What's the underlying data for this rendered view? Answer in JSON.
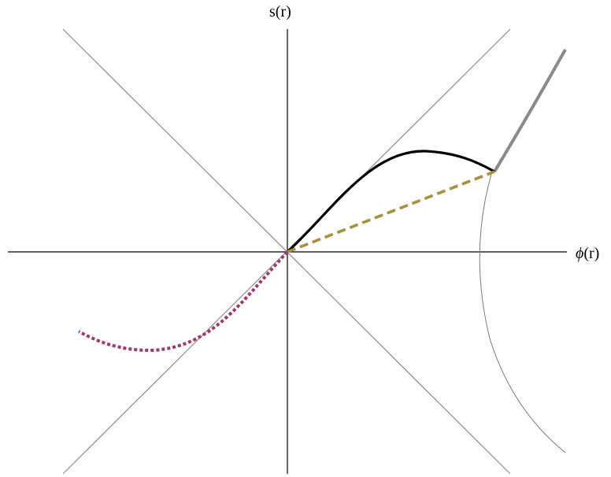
{
  "labels": {
    "y_axis_label": "s(r)",
    "x_axis_phi": "ϕ",
    "x_axis_suffix": "(r)"
  },
  "colors": {
    "axes": "#000000",
    "diagonals": "#8c8c8c",
    "black_curve": "#000000",
    "thin_curve": "#7a7a7a",
    "thick_gray_curve": "#8a8a8a",
    "olive_dashed": "#a3913f",
    "magenta_dotted": "#9b3a6e",
    "background": "#ffffff"
  }
}
